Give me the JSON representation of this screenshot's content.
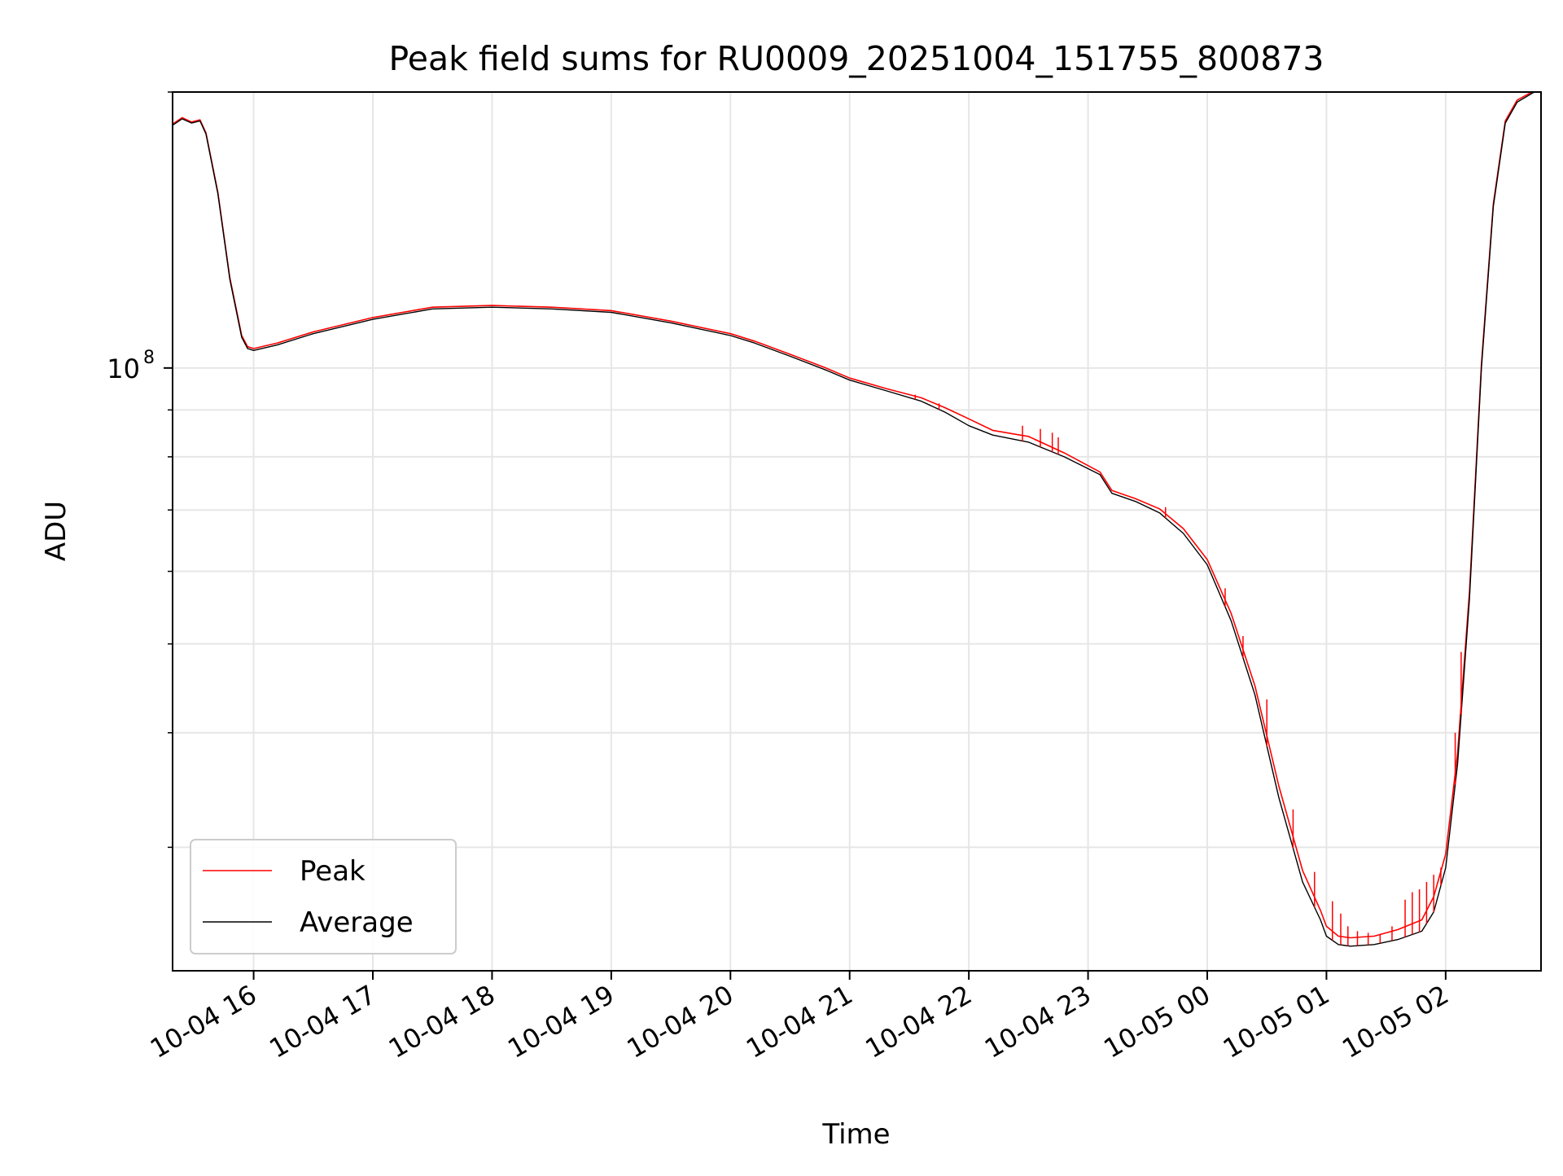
{
  "chart_data": {
    "type": "line",
    "title": "Peak field sums for RU0009_20251004_151755_800873",
    "xlabel": "Time",
    "ylabel": "ADU",
    "yscale": "log",
    "ylim": [
      22000000,
      200000000
    ],
    "xlim_hours": [
      15.32,
      26.8
    ],
    "x_unit": "hours since 2025-10-04 00:00",
    "grid": true,
    "x_ticks": [
      {
        "hour": 16,
        "label": "10-04 16"
      },
      {
        "hour": 17,
        "label": "10-04 17"
      },
      {
        "hour": 18,
        "label": "10-04 18"
      },
      {
        "hour": 19,
        "label": "10-04 19"
      },
      {
        "hour": 20,
        "label": "10-04 20"
      },
      {
        "hour": 21,
        "label": "10-04 21"
      },
      {
        "hour": 22,
        "label": "10-04 22"
      },
      {
        "hour": 23,
        "label": "10-04 23"
      },
      {
        "hour": 24,
        "label": "10-05 00"
      },
      {
        "hour": 25,
        "label": "10-05 01"
      },
      {
        "hour": 26,
        "label": "10-05 02"
      }
    ],
    "y_major_ticks": [
      {
        "value": 100000000,
        "label_base": "10",
        "label_exp": "8"
      }
    ],
    "y_minor_ticks": [
      30000000,
      40000000,
      50000000,
      60000000,
      70000000,
      80000000,
      90000000,
      200000000
    ],
    "legend": {
      "position": "lower-left",
      "entries": [
        {
          "label": "Peak",
          "color": "#ff0000"
        },
        {
          "label": "Average",
          "color": "#000000"
        }
      ]
    },
    "series": [
      {
        "name": "Average",
        "color": "#000000",
        "x": [
          15.32,
          15.4,
          15.48,
          15.55,
          15.6,
          15.7,
          15.8,
          15.9,
          15.95,
          16.0,
          16.2,
          16.5,
          17.0,
          17.5,
          18.0,
          18.5,
          19.0,
          19.5,
          20.0,
          20.2,
          20.5,
          20.8,
          21.0,
          21.3,
          21.6,
          21.8,
          22.0,
          22.2,
          22.5,
          22.8,
          23.1,
          23.2,
          23.4,
          23.6,
          23.8,
          24.0,
          24.2,
          24.4,
          24.6,
          24.8,
          24.95,
          25.0,
          25.1,
          25.2,
          25.4,
          25.6,
          25.8,
          25.9,
          26.0,
          26.1,
          26.2,
          26.3,
          26.4,
          26.5,
          26.6,
          26.8
        ],
        "values": [
          184000000,
          187000000,
          185000000,
          186000000,
          180000000,
          155000000,
          125000000,
          108000000,
          105000000,
          104500000,
          106000000,
          109000000,
          113000000,
          116000000,
          116500000,
          116000000,
          115000000,
          112000000,
          108500000,
          106500000,
          103000000,
          99500000,
          97000000,
          94500000,
          92000000,
          89500000,
          86500000,
          84500000,
          83000000,
          80000000,
          76500000,
          73000000,
          71500000,
          69500000,
          66000000,
          61000000,
          53000000,
          44000000,
          34000000,
          27500000,
          25000000,
          24000000,
          23500000,
          23400000,
          23500000,
          23800000,
          24300000,
          25500000,
          28500000,
          37000000,
          56000000,
          100000000,
          150000000,
          185000000,
          195000000,
          202000000
        ]
      },
      {
        "name": "Peak",
        "color": "#ff0000",
        "x": [
          15.32,
          15.4,
          15.48,
          15.55,
          15.6,
          15.7,
          15.8,
          15.9,
          15.95,
          16.0,
          16.2,
          16.5,
          17.0,
          17.5,
          18.0,
          18.5,
          19.0,
          19.5,
          20.0,
          20.2,
          20.5,
          20.8,
          21.0,
          21.3,
          21.6,
          21.8,
          22.0,
          22.2,
          22.5,
          22.8,
          23.1,
          23.2,
          23.4,
          23.6,
          23.8,
          24.0,
          24.2,
          24.4,
          24.6,
          24.8,
          24.95,
          25.0,
          25.1,
          25.2,
          25.4,
          25.6,
          25.8,
          25.9,
          26.0,
          26.1,
          26.2,
          26.3,
          26.4,
          26.5,
          26.6,
          26.8
        ],
        "values": [
          184500000,
          187500000,
          185500000,
          186500000,
          180500000,
          155500000,
          125500000,
          108500000,
          105500000,
          105000000,
          106500000,
          109500000,
          113500000,
          116500000,
          117000000,
          116500000,
          115500000,
          112500000,
          109000000,
          107000000,
          103500000,
          100000000,
          97500000,
          95000000,
          92800000,
          90500000,
          88000000,
          85500000,
          84200000,
          80800000,
          77000000,
          73500000,
          72000000,
          70200000,
          66800000,
          61800000,
          54000000,
          45000000,
          35000000,
          28300000,
          25600000,
          24600000,
          24000000,
          23900000,
          24000000,
          24400000,
          25000000,
          26500000,
          29500000,
          38000000,
          57000000,
          101000000,
          151000000,
          186000000,
          196000000,
          202500000
        ]
      }
    ],
    "peak_spikes": [
      {
        "hour": 21.55,
        "value": 93500000
      },
      {
        "hour": 21.75,
        "value": 91500000
      },
      {
        "hour": 22.45,
        "value": 86500000
      },
      {
        "hour": 22.6,
        "value": 85800000
      },
      {
        "hour": 22.7,
        "value": 85000000
      },
      {
        "hour": 22.75,
        "value": 84000000
      },
      {
        "hour": 23.65,
        "value": 70500000
      },
      {
        "hour": 24.15,
        "value": 57500000
      },
      {
        "hour": 24.3,
        "value": 51000000
      },
      {
        "hour": 24.5,
        "value": 43500000
      },
      {
        "hour": 24.72,
        "value": 33000000
      },
      {
        "hour": 24.9,
        "value": 28200000
      },
      {
        "hour": 25.05,
        "value": 26200000
      },
      {
        "hour": 25.12,
        "value": 25400000
      },
      {
        "hour": 25.18,
        "value": 24600000
      },
      {
        "hour": 25.26,
        "value": 24300000
      },
      {
        "hour": 25.35,
        "value": 24200000
      },
      {
        "hour": 25.45,
        "value": 24100000
      },
      {
        "hour": 25.55,
        "value": 24600000
      },
      {
        "hour": 25.66,
        "value": 26300000
      },
      {
        "hour": 25.72,
        "value": 26800000
      },
      {
        "hour": 25.78,
        "value": 27000000
      },
      {
        "hour": 25.84,
        "value": 27500000
      },
      {
        "hour": 25.9,
        "value": 28000000
      },
      {
        "hour": 25.96,
        "value": 28500000
      },
      {
        "hour": 26.08,
        "value": 40000000
      },
      {
        "hour": 26.13,
        "value": 49000000
      }
    ]
  }
}
